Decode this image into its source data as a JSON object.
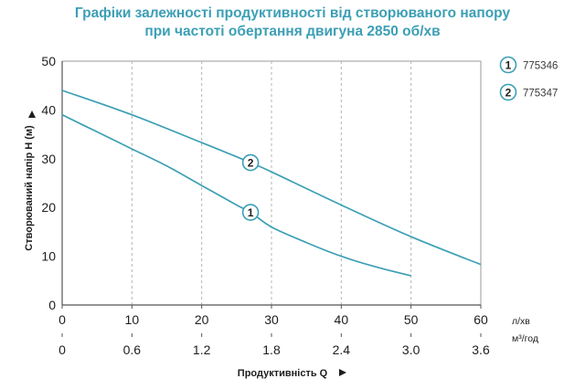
{
  "title_line1": "Графіки залежності продуктивності від створюваного напору",
  "title_line2": "при частоті обертання двигуна 2850 об/хв",
  "chart_data": {
    "type": "line",
    "title": "Графіки залежності продуктивності від створюваного напору при частоті обертання двигуна 2850 об/хв",
    "ylabel": "Створюваний напір H (м)",
    "xlabel": "Продуктивність Q",
    "x_unit_primary": "л/хв",
    "x_unit_secondary": "м³/год",
    "xlim": [
      0,
      60
    ],
    "ylim": [
      0,
      50
    ],
    "x_ticks": [
      "0",
      "10",
      "20",
      "30",
      "40",
      "50",
      "60"
    ],
    "x_ticks_secondary": [
      "0",
      "0.6",
      "1.2",
      "1.8",
      "2.4",
      "3.0",
      "3.6"
    ],
    "y_ticks": [
      "0",
      "10",
      "20",
      "30",
      "40",
      "50"
    ],
    "grid": "vertical dashed",
    "legend_position": "top-right",
    "line_color": "#3c9fb5",
    "series": [
      {
        "name": "775346",
        "marker": "1",
        "marker_at_x": 27,
        "x": [
          0,
          5,
          10,
          15,
          20,
          25,
          27,
          30,
          35,
          40,
          45,
          50
        ],
        "y": [
          39,
          35.5,
          32,
          28.5,
          24.5,
          20.5,
          19,
          16,
          12.8,
          10,
          7.8,
          6
        ]
      },
      {
        "name": "775347",
        "marker": "2",
        "marker_at_x": 27,
        "x": [
          0,
          10,
          20,
          27,
          30,
          40,
          50,
          60
        ],
        "y": [
          44,
          39,
          33.3,
          29.2,
          27.3,
          20.5,
          14,
          8.3
        ]
      }
    ]
  }
}
